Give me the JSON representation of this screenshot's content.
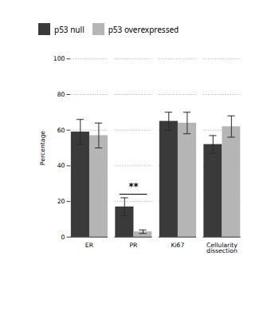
{
  "chart_data": {
    "type": "bar",
    "categories": [
      "ER",
      "PR",
      "Ki67",
      "Cellularity\ndissection"
    ],
    "series": [
      {
        "name": "p53 null",
        "color": "#3a3a3a",
        "values": [
          59,
          17,
          65,
          52
        ],
        "errors": [
          7,
          5,
          5,
          5
        ]
      },
      {
        "name": "p53 overexpressed",
        "color": "#b5b5b5",
        "values": [
          57,
          3,
          64,
          62
        ],
        "errors": [
          7,
          1,
          6,
          6
        ]
      }
    ],
    "ylabel": "Percentage",
    "ylim": [
      0,
      100
    ],
    "yticks": [
      0,
      20,
      40,
      60,
      80,
      100
    ],
    "grid": true,
    "legend": "upper left",
    "annotations": [
      {
        "text": "**",
        "category": "PR"
      }
    ]
  }
}
